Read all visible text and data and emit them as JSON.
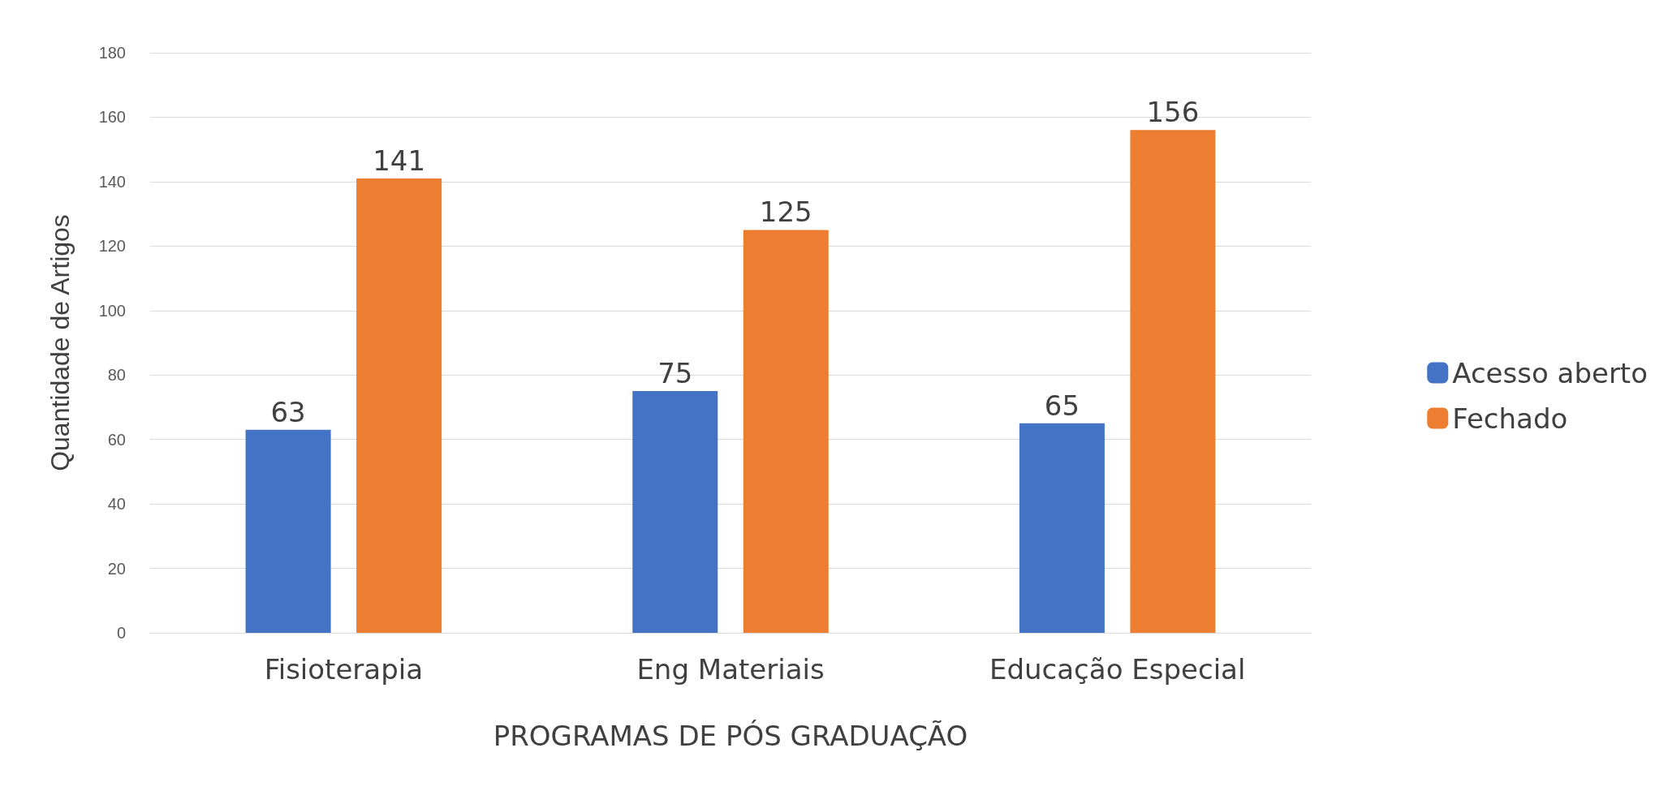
{
  "chart_data": {
    "type": "bar",
    "xlabel": "PROGRAMAS DE PÓS GRADUAÇÃO",
    "ylabel": "Quantidade de Artigos",
    "categories": [
      "Fisioterapia",
      "Eng Materiais",
      "Educação Especial"
    ],
    "series": [
      {
        "name": "Acesso aberto",
        "color": "#4472c4",
        "values": [
          63,
          75,
          65
        ]
      },
      {
        "name": "Fechado",
        "color": "#ed7d31",
        "values": [
          141,
          125,
          156
        ]
      }
    ],
    "ylim": [
      0,
      180
    ],
    "yticks": [
      0,
      20,
      40,
      60,
      80,
      100,
      120,
      140,
      160,
      180
    ],
    "grid": "y",
    "legend": "right",
    "data_labels": true
  }
}
